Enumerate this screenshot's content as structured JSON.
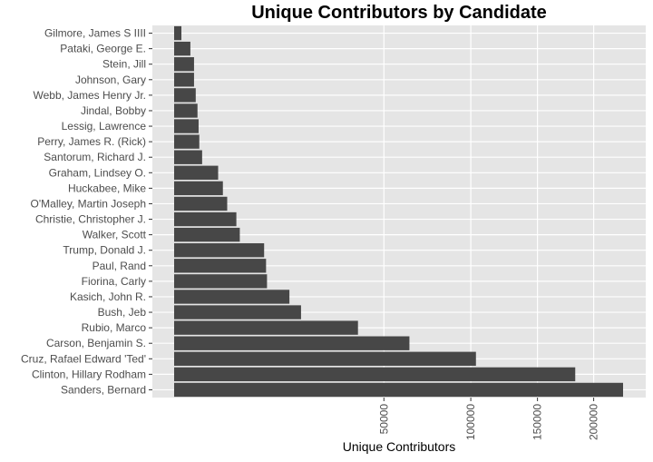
{
  "chart_data": {
    "type": "bar",
    "orientation": "horizontal",
    "title": "Unique Contributors by Candidate",
    "x_label": "Unique Contributors",
    "x_scale": "sqrt",
    "color": "#474747",
    "grid": true,
    "categories": [
      "Gilmore, James S IIII",
      "Pataki, George E.",
      "Stein, Jill",
      "Johnson, Gary",
      "Webb, James Henry Jr.",
      "Jindal, Bobby",
      "Lessig, Lawrence",
      "Perry, James R. (Rick)",
      "Santorum, Richard J.",
      "Graham, Lindsey O.",
      "Huckabee, Mike",
      "O'Malley, Martin Joseph",
      "Christie, Christopher J.",
      "Walker, Scott",
      "Trump, Donald J.",
      "Paul, Rand",
      "Fiorina, Carly",
      "Kasich, John R.",
      "Bush, Jeb",
      "Rubio, Marco",
      "Carson, Benjamin S.",
      "Cruz, Rafael Edward 'Ted'",
      "Clinton, Hillary Rodham",
      "Sanders, Bernard"
    ],
    "values": [
      60,
      300,
      450,
      450,
      530,
      620,
      680,
      720,
      890,
      2200,
      2700,
      3200,
      4400,
      4900,
      9200,
      9600,
      9800,
      15100,
      18300,
      38400,
      62900,
      103500,
      182800,
      229000
    ],
    "xlim": [
      0,
      245000
    ],
    "xticks": [
      50000,
      100000,
      150000,
      200000
    ]
  }
}
